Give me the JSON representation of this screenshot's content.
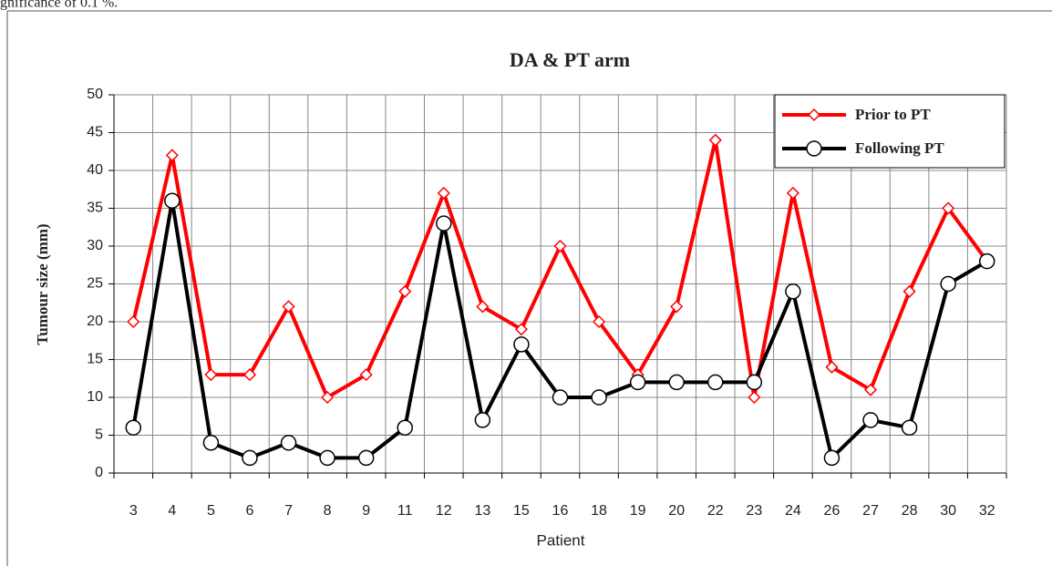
{
  "header_text": "gnificance of 0.1 %.",
  "chart_data": {
    "type": "line",
    "title": "DA & PT arm",
    "x_label": "Patient",
    "y_label": "Tumour size  (mm)",
    "categories": [
      "3",
      "4",
      "5",
      "6",
      "7",
      "8",
      "9",
      "11",
      "12",
      "13",
      "15",
      "16",
      "18",
      "19",
      "20",
      "22",
      "23",
      "24",
      "26",
      "27",
      "28",
      "30",
      "32"
    ],
    "series": [
      {
        "name": "Prior to PT",
        "color": "#ff0000",
        "marker": "diamond",
        "values": [
          20,
          42,
          13,
          13,
          22,
          10,
          13,
          24,
          37,
          22,
          19,
          30,
          20,
          13,
          22,
          44,
          10,
          37,
          14,
          11,
          24,
          35,
          28
        ]
      },
      {
        "name": "Following PT",
        "color": "#000000",
        "marker": "circle",
        "values": [
          6,
          36,
          4,
          2,
          4,
          2,
          2,
          6,
          33,
          7,
          17,
          10,
          10,
          12,
          12,
          12,
          12,
          24,
          2,
          7,
          6,
          25,
          28
        ]
      }
    ],
    "ylim": [
      0,
      50
    ],
    "yticks": [
      0,
      5,
      10,
      15,
      20,
      25,
      30,
      35,
      40,
      45,
      50
    ],
    "grid": true,
    "legend": "upper right"
  }
}
